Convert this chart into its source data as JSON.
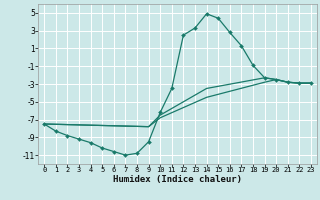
{
  "xlabel": "Humidex (Indice chaleur)",
  "bg_color": "#cce8e8",
  "grid_color": "#ffffff",
  "line_color": "#1a7a6a",
  "xlim": [
    -0.5,
    23.5
  ],
  "ylim": [
    -12.0,
    6.0
  ],
  "yticks": [
    5,
    3,
    1,
    -1,
    -3,
    -5,
    -7,
    -9,
    -11
  ],
  "xticks": [
    0,
    1,
    2,
    3,
    4,
    5,
    6,
    7,
    8,
    9,
    10,
    11,
    12,
    13,
    14,
    15,
    16,
    17,
    18,
    19,
    20,
    21,
    22,
    23
  ],
  "main_x": [
    0,
    1,
    2,
    3,
    4,
    5,
    6,
    7,
    8,
    9,
    10,
    11,
    12,
    13,
    14,
    15,
    16,
    17,
    18,
    19,
    20,
    21,
    22,
    23
  ],
  "main_y": [
    -7.5,
    -8.3,
    -8.8,
    -9.2,
    -9.6,
    -10.2,
    -10.6,
    -11.0,
    -10.8,
    -9.5,
    -6.2,
    -3.5,
    2.5,
    3.3,
    4.9,
    4.4,
    2.8,
    1.3,
    -0.9,
    -2.3,
    -2.5,
    -2.8,
    -2.9,
    -2.9
  ],
  "line2_x": [
    0,
    9,
    10,
    14,
    19,
    20,
    21,
    22,
    23
  ],
  "line2_y": [
    -7.5,
    -7.8,
    -6.5,
    -3.5,
    -2.3,
    -2.5,
    -2.8,
    -2.9,
    -2.9
  ],
  "line3_x": [
    0,
    9,
    10,
    14,
    19,
    20,
    21,
    22,
    23
  ],
  "line3_y": [
    -7.5,
    -7.8,
    -6.8,
    -4.5,
    -2.8,
    -2.5,
    -2.8,
    -2.9,
    -2.9
  ]
}
